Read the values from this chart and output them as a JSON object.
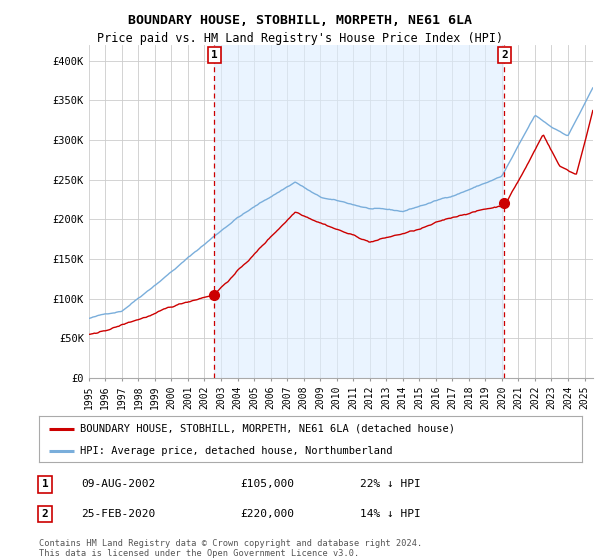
{
  "title": "BOUNDARY HOUSE, STOBHILL, MORPETH, NE61 6LA",
  "subtitle": "Price paid vs. HM Land Registry's House Price Index (HPI)",
  "ylim": [
    0,
    420000
  ],
  "yticks": [
    0,
    50000,
    100000,
    150000,
    200000,
    250000,
    300000,
    350000,
    400000
  ],
  "ytick_labels": [
    "£0",
    "£50K",
    "£100K",
    "£150K",
    "£200K",
    "£250K",
    "£300K",
    "£350K",
    "£400K"
  ],
  "sale1_year": 2002.6,
  "sale1_price": 105000,
  "sale1_label": "1",
  "sale2_year": 2020.15,
  "sale2_price": 220000,
  "sale2_label": "2",
  "legend_entries": [
    "BOUNDARY HOUSE, STOBHILL, MORPETH, NE61 6LA (detached house)",
    "HPI: Average price, detached house, Northumberland"
  ],
  "table_rows": [
    [
      "1",
      "09-AUG-2002",
      "£105,000",
      "22% ↓ HPI"
    ],
    [
      "2",
      "25-FEB-2020",
      "£220,000",
      "14% ↓ HPI"
    ]
  ],
  "footnote": "Contains HM Land Registry data © Crown copyright and database right 2024.\nThis data is licensed under the Open Government Licence v3.0.",
  "hpi_color": "#7aaedb",
  "sold_color": "#cc0000",
  "vline_color": "#cc0000",
  "shade_color": "#ddeeff",
  "background_color": "#ffffff",
  "grid_color": "#cccccc",
  "xlim_start": 1995,
  "xlim_end": 2025.5
}
